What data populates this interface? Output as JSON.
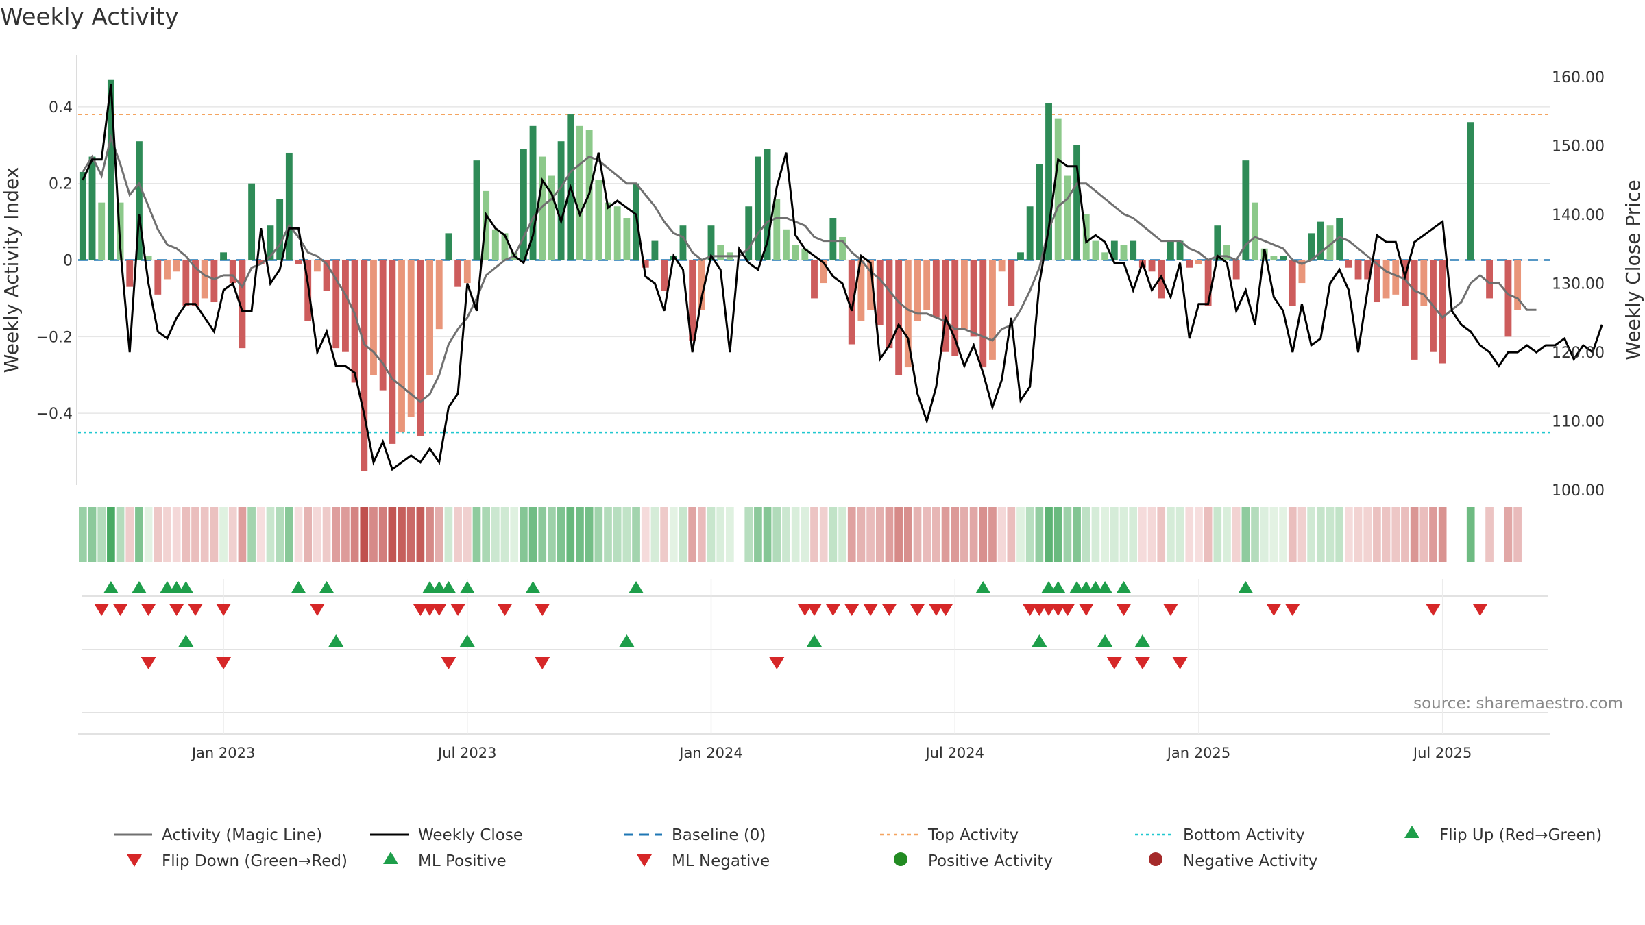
{
  "chart_data": {
    "type": "bar",
    "title": "Weekly Activity",
    "ylabel_left": "Weekly Activity Index",
    "ylabel_right": "Weekly Close Price",
    "source": "source: sharemaestro.com",
    "left_axis": {
      "ylim": [
        -0.6,
        0.55
      ],
      "ticks": [
        0.4,
        0.2,
        0,
        -0.2,
        -0.4
      ],
      "tick_labels": [
        "0.4",
        "0.2",
        "0",
        "−0.2",
        "−0.4"
      ]
    },
    "right_axis": {
      "ylim": [
        100,
        164
      ],
      "ticks": [
        160,
        150,
        140,
        130,
        120,
        110,
        100
      ],
      "tick_labels": [
        "160.00",
        "150.00",
        "140.00",
        "130.00",
        "120.00",
        "110.00",
        "100.00"
      ]
    },
    "top_activity": 0.38,
    "bottom_activity": -0.45,
    "baseline": 0,
    "x_ticks": [
      {
        "week": 15,
        "label": "Jan 2023"
      },
      {
        "week": 41,
        "label": "Jul 2023"
      },
      {
        "week": 67,
        "label": "Jan 2024"
      },
      {
        "week": 93,
        "label": "Jul 2024"
      },
      {
        "week": 119,
        "label": "Jan 2025"
      },
      {
        "week": 145,
        "label": "Jul 2025"
      }
    ],
    "weeks": 157,
    "activity": [
      0.23,
      0.27,
      0.15,
      0.47,
      0.15,
      -0.07,
      0.31,
      0.01,
      -0.09,
      -0.05,
      -0.03,
      -0.12,
      -0.12,
      -0.1,
      -0.11,
      0.02,
      -0.06,
      -0.23,
      0.2,
      -0.01,
      0.09,
      0.16,
      0.28,
      -0.01,
      -0.16,
      -0.03,
      -0.08,
      -0.23,
      -0.24,
      -0.32,
      -0.55,
      -0.3,
      -0.34,
      -0.48,
      -0.45,
      -0.41,
      -0.46,
      -0.3,
      -0.18,
      0.07,
      -0.07,
      -0.06,
      0.26,
      0.18,
      0.08,
      0.07,
      0.02,
      0.29,
      0.35,
      0.27,
      0.22,
      0.31,
      0.38,
      0.35,
      0.34,
      0.21,
      0.15,
      0.14,
      0.11,
      0.2,
      -0.02,
      0.05,
      -0.08,
      0.01,
      0.09,
      -0.21,
      -0.13,
      0.09,
      0.04,
      0.02,
      0.0,
      0.14,
      0.27,
      0.29,
      0.16,
      0.08,
      0.04,
      0.03,
      -0.1,
      -0.06,
      0.11,
      0.06,
      -0.22,
      -0.16,
      -0.13,
      -0.17,
      -0.23,
      -0.3,
      -0.28,
      -0.16,
      -0.13,
      -0.15,
      -0.24,
      -0.25,
      -0.18,
      -0.2,
      -0.28,
      -0.26,
      -0.03,
      -0.12,
      0.02,
      0.14,
      0.25,
      0.41,
      0.37,
      0.22,
      0.3,
      0.12,
      0.05,
      0.02,
      0.05,
      0.04,
      0.05,
      -0.02,
      -0.03,
      -0.1,
      0.05,
      0.05,
      -0.02,
      -0.01,
      -0.12,
      0.09,
      0.04,
      -0.05,
      0.26,
      0.15,
      0.03,
      0.01,
      0.01,
      -0.12,
      -0.06,
      0.07,
      0.1,
      0.09,
      0.11,
      -0.02,
      -0.05,
      -0.05,
      -0.11,
      -0.1,
      -0.09,
      -0.12,
      -0.26,
      -0.12,
      -0.24,
      -0.27,
      0.0,
      0.0,
      0.36,
      0.0,
      -0.1,
      0.0,
      -0.2,
      -0.13,
      0.0,
      0.0
    ],
    "magic_line": [
      0.23,
      0.27,
      0.22,
      0.32,
      0.25,
      0.17,
      0.2,
      0.14,
      0.08,
      0.04,
      0.03,
      0.01,
      -0.02,
      -0.04,
      -0.05,
      -0.04,
      -0.04,
      -0.07,
      -0.02,
      -0.01,
      0.01,
      0.04,
      0.09,
      0.06,
      0.02,
      0.01,
      -0.01,
      -0.05,
      -0.09,
      -0.14,
      -0.22,
      -0.24,
      -0.27,
      -0.31,
      -0.33,
      -0.35,
      -0.37,
      -0.35,
      -0.3,
      -0.22,
      -0.18,
      -0.15,
      -0.1,
      -0.04,
      -0.02,
      0.0,
      0.01,
      0.06,
      0.11,
      0.14,
      0.16,
      0.19,
      0.23,
      0.25,
      0.27,
      0.26,
      0.24,
      0.22,
      0.2,
      0.2,
      0.17,
      0.14,
      0.1,
      0.07,
      0.06,
      0.02,
      0.0,
      0.01,
      0.01,
      0.01,
      0.01,
      0.03,
      0.07,
      0.1,
      0.11,
      0.11,
      0.1,
      0.09,
      0.06,
      0.05,
      0.05,
      0.05,
      0.02,
      0.0,
      -0.03,
      -0.05,
      -0.08,
      -0.11,
      -0.13,
      -0.14,
      -0.14,
      -0.15,
      -0.16,
      -0.18,
      -0.18,
      -0.19,
      -0.2,
      -0.21,
      -0.18,
      -0.17,
      -0.13,
      -0.08,
      -0.02,
      0.08,
      0.14,
      0.16,
      0.2,
      0.2,
      0.18,
      0.16,
      0.14,
      0.12,
      0.11,
      0.09,
      0.07,
      0.05,
      0.05,
      0.05,
      0.03,
      0.02,
      0.0,
      0.01,
      0.01,
      0.0,
      0.04,
      0.06,
      0.05,
      0.04,
      0.03,
      0.0,
      -0.01,
      0.0,
      0.02,
      0.04,
      0.06,
      0.05,
      0.03,
      0.01,
      -0.01,
      -0.03,
      -0.04,
      -0.05,
      -0.08,
      -0.09,
      -0.12,
      -0.15,
      -0.13,
      -0.11,
      -0.06,
      -0.04,
      -0.06,
      -0.06,
      -0.09,
      -0.1,
      -0.13,
      -0.13
    ],
    "weekly_close": [
      145,
      148,
      148,
      159,
      135,
      120,
      140,
      130,
      123,
      122,
      125,
      127,
      127,
      125,
      123,
      129,
      130,
      126,
      126,
      138,
      130,
      132,
      138,
      138,
      130,
      120,
      123,
      118,
      118,
      117,
      111,
      104,
      107,
      103,
      104,
      105,
      104,
      106,
      104,
      112,
      114,
      130,
      126,
      140,
      138,
      137,
      134,
      133,
      137,
      145,
      143,
      139,
      144,
      140,
      143,
      149,
      141,
      142,
      141,
      140,
      131,
      130,
      126,
      134,
      132,
      120,
      128,
      134,
      132,
      120,
      135,
      133,
      132,
      136,
      144,
      149,
      137,
      135,
      134,
      133,
      131,
      130,
      126,
      134,
      133,
      119,
      121,
      124,
      122,
      114,
      110,
      115,
      125,
      122,
      118,
      121,
      117,
      112,
      116,
      125,
      113,
      115,
      130,
      138,
      148,
      147,
      147,
      136,
      137,
      136,
      133,
      133,
      129,
      133,
      129,
      131,
      128,
      133,
      122,
      127,
      127,
      134,
      133,
      126,
      129,
      124,
      135,
      128,
      126,
      120,
      127,
      121,
      122,
      130,
      132,
      129,
      120,
      129,
      137,
      136,
      136,
      131,
      136,
      137,
      138,
      139,
      126,
      124,
      123,
      121,
      120,
      118,
      120,
      120,
      121,
      120,
      121,
      121,
      122,
      119,
      121,
      120,
      124
    ]
  },
  "signals": {
    "flip_up": [
      3,
      6,
      9,
      10,
      11,
      23,
      26,
      37,
      38,
      39,
      41,
      48,
      59,
      96,
      103,
      104,
      106,
      107,
      108,
      109,
      111,
      124
    ],
    "flip_down": [
      2,
      4,
      7,
      10,
      12,
      15,
      25,
      36,
      37,
      38,
      40,
      45,
      49,
      77,
      78,
      80,
      82,
      84,
      86,
      89,
      91,
      92,
      101,
      102,
      103,
      104,
      105,
      107,
      111,
      116,
      127,
      129,
      144,
      149
    ],
    "ml_positive": [
      11,
      27,
      41,
      58,
      78,
      102,
      109,
      113
    ],
    "ml_negative": [
      7,
      15,
      39,
      49,
      74,
      110,
      113,
      117
    ]
  },
  "legend": {
    "row1": [
      "Activity (Magic Line)",
      "Weekly Close",
      "Baseline (0)",
      "Top Activity",
      "Bottom Activity",
      "Flip Up (Red→Green)"
    ],
    "row2": [
      "Flip Down (Green→Red)",
      "ML Positive",
      "ML Negative",
      "Positive Activity",
      "Negative Activity"
    ]
  },
  "colors": {
    "pos_dark": "#2e8b57",
    "pos_light": "#8cc98a",
    "neg_dark": "#cd5c5c",
    "neg_light": "#e9967a",
    "magic_line": "#707070",
    "close": "#000000",
    "baseline": "#1f77b4",
    "top": "#f4a460",
    "bottom": "#20c8d0",
    "flip_up": "#1e9e4a",
    "flip_down": "#d62728",
    "positive_dot": "#228b22",
    "negative_dot": "#a52a2a",
    "grid": "#e6e6e6"
  }
}
